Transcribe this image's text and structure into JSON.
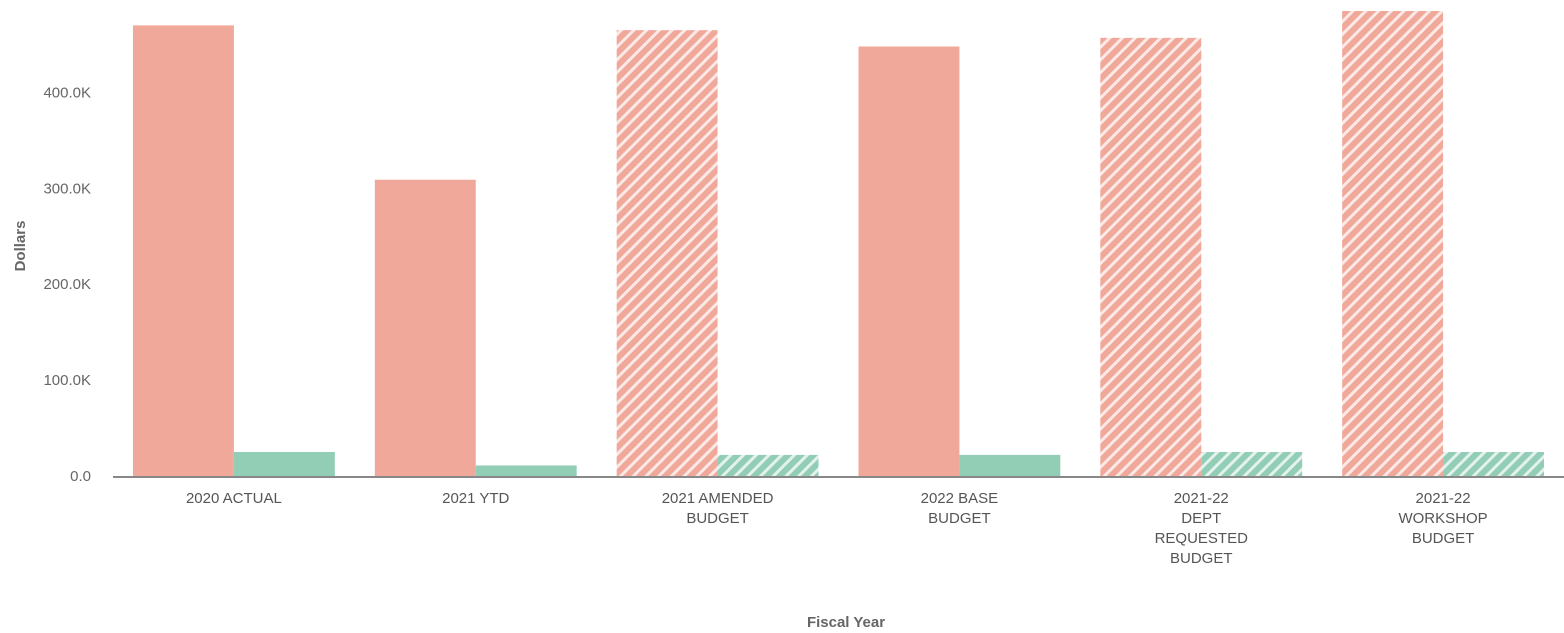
{
  "chart_data": {
    "type": "bar",
    "xlabel": "Fiscal Year",
    "ylabel": "Dollars",
    "ylim": [
      0,
      485000
    ],
    "yticks": [
      0,
      100000,
      200000,
      300000,
      400000
    ],
    "ytick_labels": [
      "0.0",
      "100.0K",
      "200.0K",
      "300.0K",
      "400.0K"
    ],
    "grid": false,
    "legend": "none",
    "categories": [
      [
        "2020 ACTUAL"
      ],
      [
        "2021 YTD"
      ],
      [
        "2021 AMENDED",
        "BUDGET"
      ],
      [
        "2022 BASE",
        "BUDGET"
      ],
      [
        "2021-22",
        "DEPT",
        "REQUESTED",
        "BUDGET"
      ],
      [
        "2021-22",
        "WORKSHOP",
        "BUDGET"
      ]
    ],
    "hatched": [
      false,
      false,
      true,
      false,
      true,
      true
    ],
    "series": [
      {
        "color": "#f0a89b",
        "values": [
          470000,
          309000,
          465000,
          448000,
          457000,
          485000
        ]
      },
      {
        "color": "#92cdb6",
        "values": [
          25000,
          11000,
          22000,
          22000,
          25000,
          25000
        ]
      }
    ],
    "axis_color": "#888888"
  }
}
